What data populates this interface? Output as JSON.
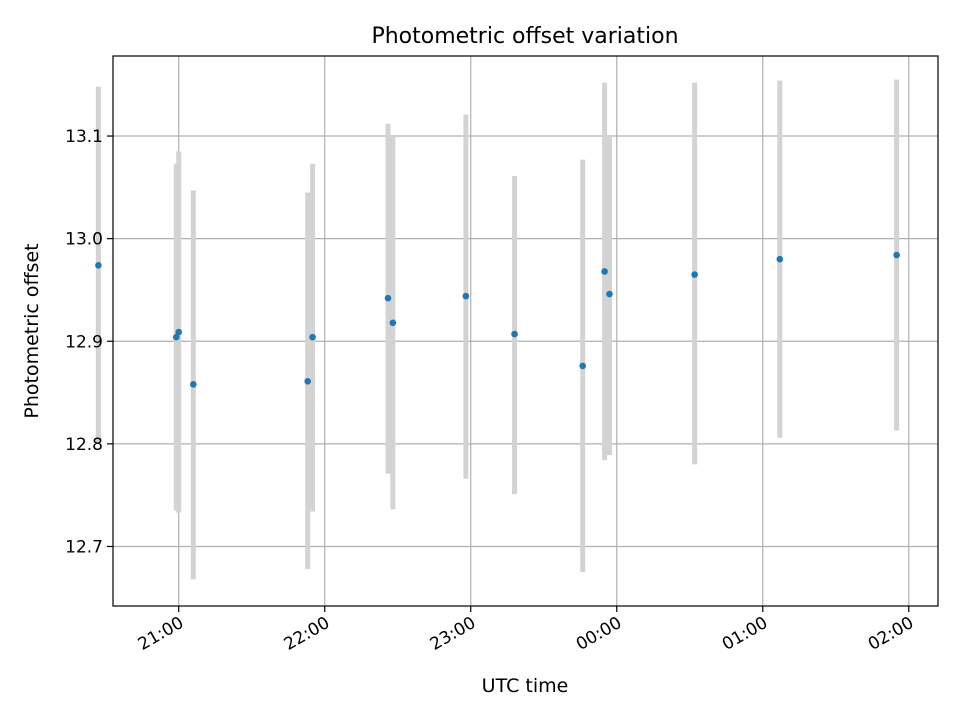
{
  "chart_data": {
    "type": "scatter",
    "title": "Photometric offset variation",
    "xlabel": "UTC time",
    "ylabel": "Photometric offset",
    "xlim": [
      "20:33",
      "02:12"
    ],
    "ylim": [
      12.642,
      13.178
    ],
    "x_ticks": [
      "21:00",
      "22:00",
      "23:00",
      "00:00",
      "01:00",
      "02:00"
    ],
    "y_ticks": [
      12.7,
      12.8,
      12.9,
      13.0,
      13.1
    ],
    "y_tick_labels": [
      "12.7",
      "12.8",
      "12.9",
      "13.0",
      "13.1"
    ],
    "grid": true,
    "x_tick_rotation": "30",
    "colors": {
      "point": "#1f77b4",
      "errorbar": "#d3d3d3",
      "grid": "#b0b0b0",
      "axis": "#000000"
    },
    "points": [
      {
        "t": "20:27",
        "y": 12.974,
        "lo": 12.8,
        "hi": 13.148
      },
      {
        "t": "20:59",
        "y": 12.904,
        "lo": 12.735,
        "hi": 13.073
      },
      {
        "t": "21:00",
        "y": 12.909,
        "lo": 12.733,
        "hi": 13.085
      },
      {
        "t": "21:06",
        "y": 12.858,
        "lo": 12.668,
        "hi": 13.047
      },
      {
        "t": "21:53",
        "y": 12.861,
        "lo": 12.678,
        "hi": 13.045
      },
      {
        "t": "21:55",
        "y": 12.904,
        "lo": 12.734,
        "hi": 13.073
      },
      {
        "t": "22:26",
        "y": 12.942,
        "lo": 12.771,
        "hi": 13.112
      },
      {
        "t": "22:28",
        "y": 12.918,
        "lo": 12.736,
        "hi": 13.1
      },
      {
        "t": "22:58",
        "y": 12.944,
        "lo": 12.766,
        "hi": 13.121
      },
      {
        "t": "23:18",
        "y": 12.907,
        "lo": 12.751,
        "hi": 13.061
      },
      {
        "t": "23:46",
        "y": 12.876,
        "lo": 12.675,
        "hi": 13.077
      },
      {
        "t": "23:55",
        "y": 12.968,
        "lo": 12.784,
        "hi": 13.152
      },
      {
        "t": "23:57",
        "y": 12.946,
        "lo": 12.789,
        "hi": 13.1
      },
      {
        "t": "00:32",
        "y": 12.965,
        "lo": 12.78,
        "hi": 13.152
      },
      {
        "t": "01:07",
        "y": 12.98,
        "lo": 12.806,
        "hi": 13.154
      },
      {
        "t": "01:55",
        "y": 12.984,
        "lo": 12.813,
        "hi": 13.155
      }
    ]
  }
}
